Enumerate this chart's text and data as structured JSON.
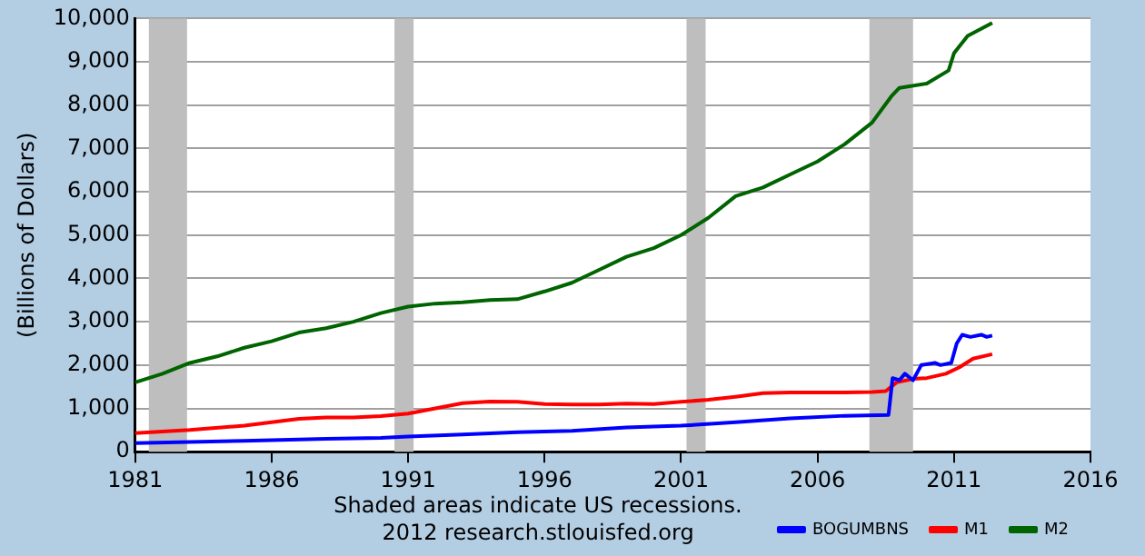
{
  "chart_data": {
    "type": "line",
    "ylabel": "(Billions of Dollars)",
    "annotations": [
      "Shaded areas indicate US recessions.",
      "2012 research.stlouisfed.org"
    ],
    "xlim": [
      1981,
      2016
    ],
    "xticks": [
      1981,
      1986,
      1991,
      1996,
      2001,
      2006,
      2011,
      2016
    ],
    "ylim": [
      0,
      10000
    ],
    "yticks": [
      {
        "value": 0,
        "label": "0"
      },
      {
        "value": 1000,
        "label": "1,000"
      },
      {
        "value": 2000,
        "label": "2,000"
      },
      {
        "value": 3000,
        "label": "3,000"
      },
      {
        "value": 4000,
        "label": "4,000"
      },
      {
        "value": 5000,
        "label": "5,000"
      },
      {
        "value": 6000,
        "label": "6,000"
      },
      {
        "value": 7000,
        "label": "7,000"
      },
      {
        "value": 8000,
        "label": "8,000"
      },
      {
        "value": 9000,
        "label": "9,000"
      },
      {
        "value": 10000,
        "label": "10,000"
      }
    ],
    "grid": "y",
    "legend": "bottom right",
    "marker": "none",
    "line_style": "solid",
    "bands": [
      {
        "axis": "x",
        "from": 1981.5,
        "to": 1982.9,
        "color": "#bebebe"
      },
      {
        "axis": "x",
        "from": 1990.5,
        "to": 1991.2,
        "color": "#bebebe"
      },
      {
        "axis": "x",
        "from": 2001.2,
        "to": 2001.9,
        "color": "#bebebe"
      },
      {
        "axis": "x",
        "from": 2007.9,
        "to": 2009.5,
        "color": "#bebebe"
      }
    ],
    "series": [
      {
        "name": "BOGUMBNS",
        "color": "#0000ff",
        "x": [
          1981,
          1985,
          1988,
          1990,
          1991,
          1993,
          1995,
          1997,
          1999,
          2001,
          2003,
          2005,
          2007,
          2008.6,
          2008.75,
          2009,
          2009.2,
          2009.5,
          2009.8,
          2010.3,
          2010.5,
          2010.9,
          2011.1,
          2011.3,
          2011.6,
          2012,
          2012.2,
          2012.4
        ],
        "values": [
          200,
          250,
          300,
          320,
          350,
          400,
          450,
          480,
          560,
          600,
          680,
          770,
          830,
          850,
          1700,
          1650,
          1800,
          1650,
          2000,
          2050,
          2000,
          2050,
          2500,
          2700,
          2650,
          2700,
          2650,
          2680
        ]
      },
      {
        "name": "M1",
        "color": "#ff0000",
        "x": [
          1981,
          1983,
          1985,
          1986,
          1987,
          1988,
          1989,
          1990,
          1991,
          1992,
          1993,
          1994,
          1995,
          1996,
          1997,
          1998,
          1999,
          2000,
          2001,
          2002,
          2003,
          2004,
          2005,
          2006,
          2007,
          2008,
          2008.5,
          2008.9,
          2009.5,
          2010,
          2010.7,
          2011.2,
          2011.7,
          2012.4
        ],
        "values": [
          430,
          500,
          600,
          680,
          760,
          790,
          790,
          820,
          880,
          1000,
          1120,
          1160,
          1150,
          1100,
          1090,
          1090,
          1110,
          1100,
          1150,
          1200,
          1270,
          1350,
          1370,
          1370,
          1370,
          1380,
          1400,
          1600,
          1680,
          1700,
          1800,
          1950,
          2150,
          2250
        ]
      },
      {
        "name": "M2",
        "color": "#006400",
        "x": [
          1981,
          1982,
          1983,
          1984,
          1985,
          1986,
          1987,
          1988,
          1989,
          1990,
          1991,
          1992,
          1993,
          1994,
          1995,
          1996,
          1997,
          1998,
          1999,
          2000,
          2001,
          2002,
          2003,
          2004,
          2005,
          2006,
          2007,
          2008,
          2008.7,
          2009,
          2010,
          2010.8,
          2011,
          2011.5,
          2012.4
        ],
        "values": [
          1600,
          1800,
          2050,
          2200,
          2400,
          2550,
          2750,
          2850,
          3000,
          3200,
          3350,
          3420,
          3450,
          3500,
          3520,
          3700,
          3900,
          4200,
          4500,
          4700,
          5000,
          5400,
          5900,
          6100,
          6400,
          6700,
          7100,
          7600,
          8200,
          8400,
          8500,
          8800,
          9200,
          9600,
          9900
        ]
      }
    ]
  }
}
